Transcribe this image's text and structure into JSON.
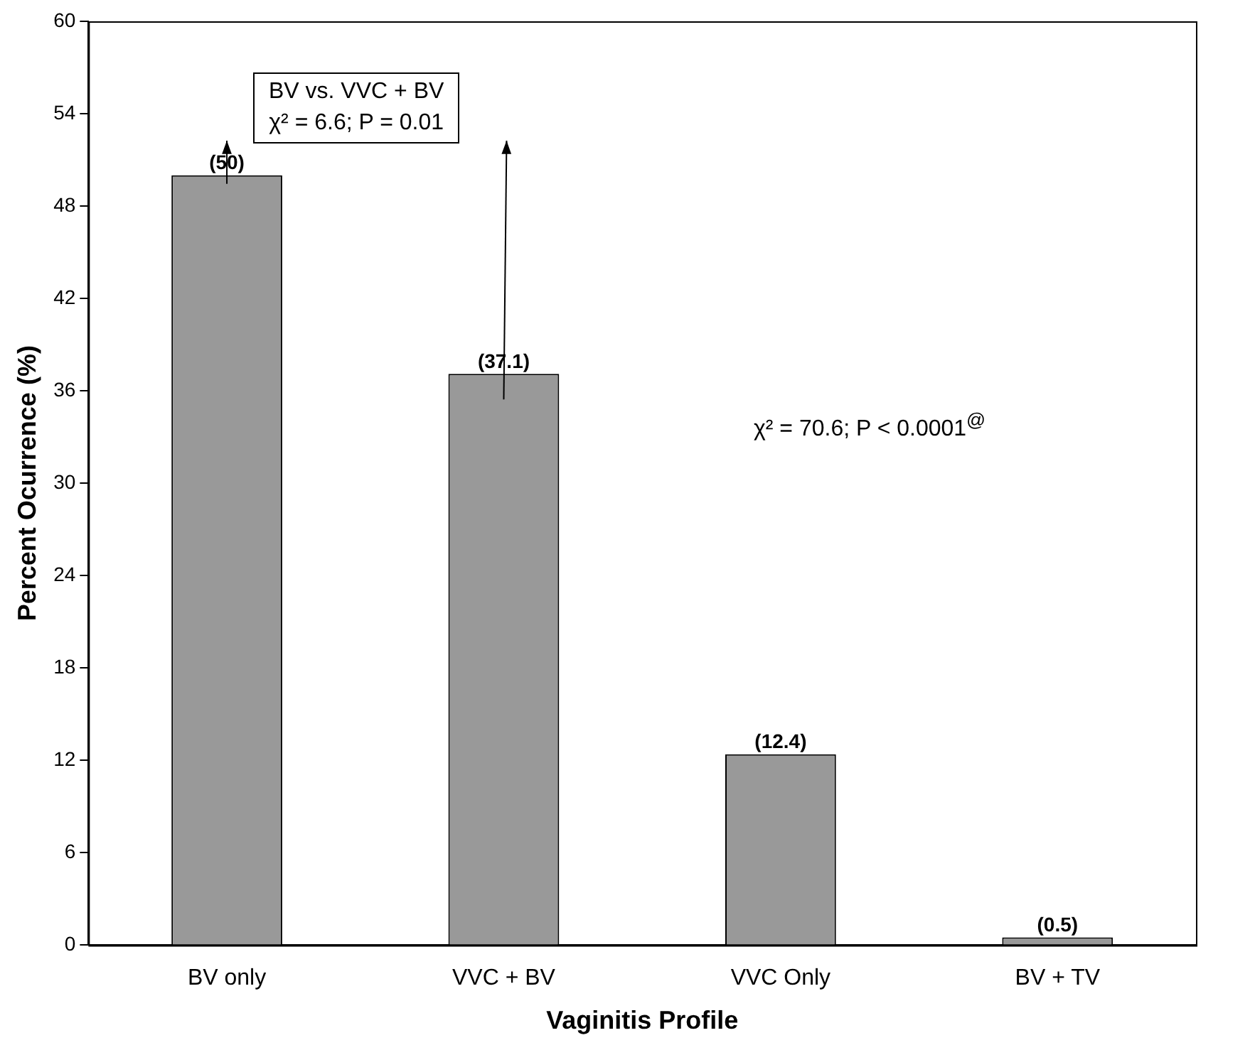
{
  "chart_data": {
    "type": "bar",
    "xlabel": "Vaginitis Profile",
    "ylabel": "Percent Ocurrence (%)",
    "categories": [
      "BV only",
      "VVC + BV",
      "VVC Only",
      "BV + TV"
    ],
    "values": [
      50,
      37.1,
      12.4,
      0.5
    ],
    "value_labels": [
      "(50)",
      "(37.1)",
      "(12.4)",
      "(0.5)"
    ],
    "color": "#999999",
    "ylim": [
      0,
      60
    ],
    "yticks": [
      0,
      6,
      12,
      18,
      24,
      30,
      36,
      42,
      48,
      54,
      60
    ],
    "annotations": [
      "BV vs. VVC + BV\nχ² = 6.6; P = 0.01",
      "χ² = 70.6; P < 0.0001$^{@}$"
    ]
  }
}
